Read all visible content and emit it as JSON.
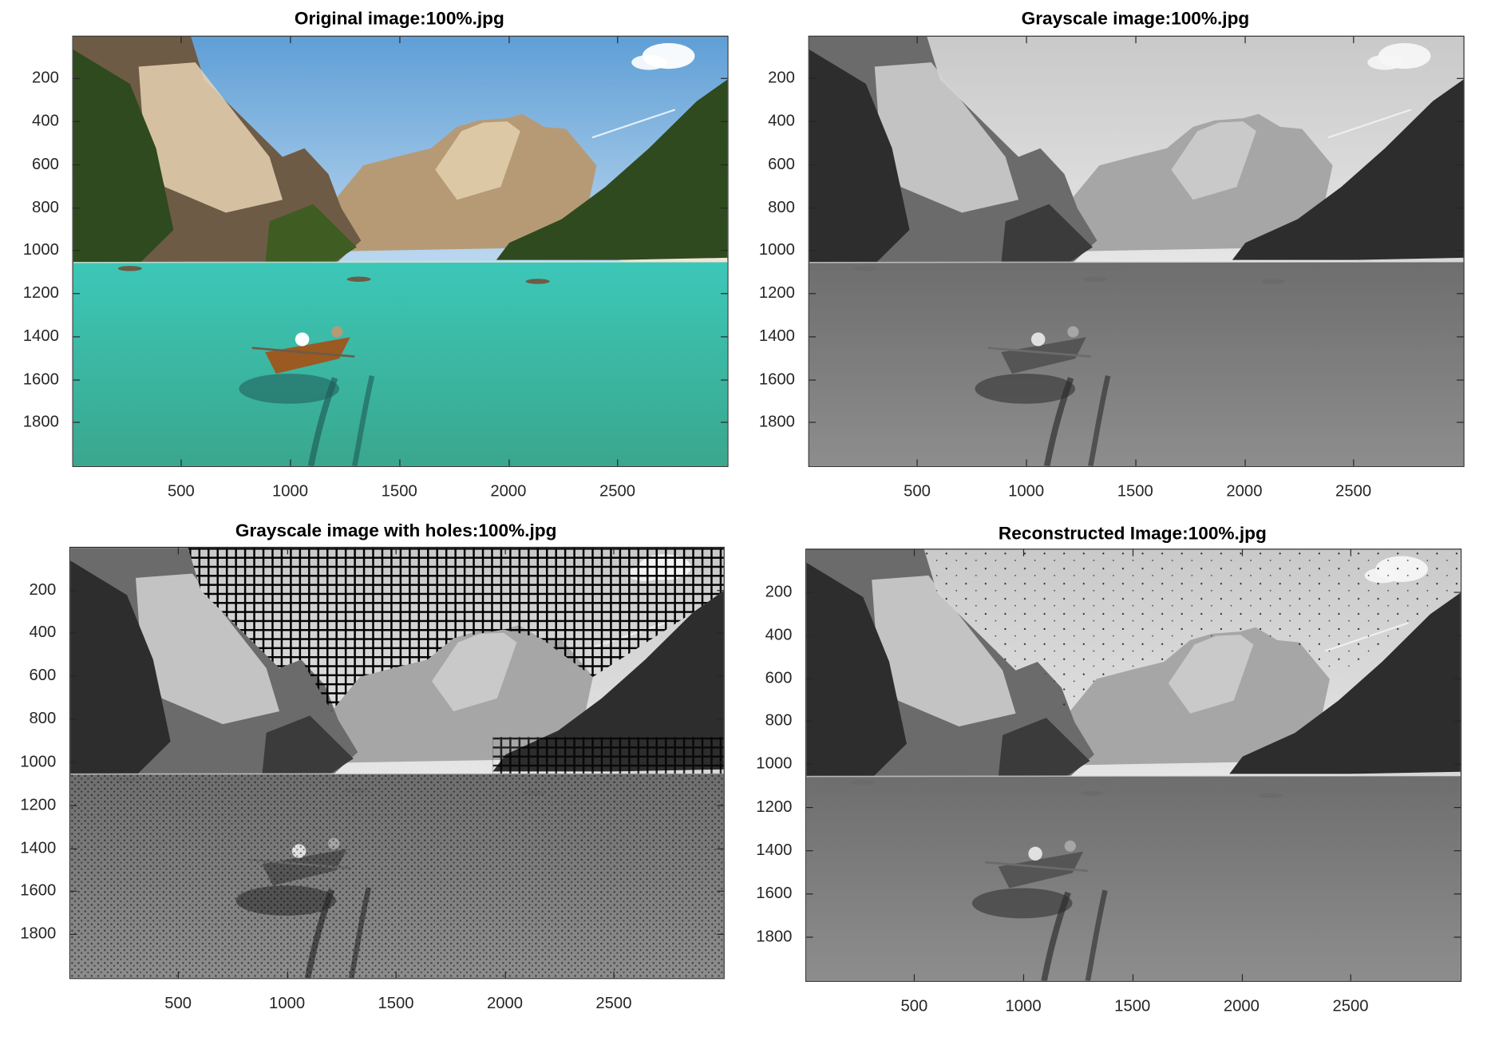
{
  "chart_data": [
    {
      "type": "image",
      "title": "Original image:100%.jpg",
      "variant": "color",
      "xlim": [
        1,
        3000
      ],
      "ylim": [
        1,
        2000
      ],
      "x_ticks": [
        500,
        1000,
        1500,
        2000,
        2500
      ],
      "y_ticks": [
        200,
        400,
        600,
        800,
        1000,
        1200,
        1400,
        1600,
        1800
      ],
      "y_reversed": true
    },
    {
      "type": "image",
      "title": "Grayscale image:100%.jpg",
      "variant": "gray",
      "xlim": [
        1,
        3000
      ],
      "ylim": [
        1,
        2000
      ],
      "x_ticks": [
        500,
        1000,
        1500,
        2000,
        2500
      ],
      "y_ticks": [
        200,
        400,
        600,
        800,
        1000,
        1200,
        1400,
        1600,
        1800
      ],
      "y_reversed": true
    },
    {
      "type": "image",
      "title": "Grayscale image with holes:100%.jpg",
      "variant": "holes",
      "xlim": [
        1,
        3000
      ],
      "ylim": [
        1,
        2000
      ],
      "x_ticks": [
        500,
        1000,
        1500,
        2000,
        2500
      ],
      "y_ticks": [
        200,
        400,
        600,
        800,
        1000,
        1200,
        1400,
        1600,
        1800
      ],
      "y_reversed": true
    },
    {
      "type": "image",
      "title": "Reconstructed Image:100%.jpg",
      "variant": "reconstructed",
      "xlim": [
        1,
        3000
      ],
      "ylim": [
        1,
        2000
      ],
      "x_ticks": [
        500,
        1000,
        1500,
        2000,
        2500
      ],
      "y_ticks": [
        200,
        400,
        600,
        800,
        1000,
        1200,
        1400,
        1600,
        1800
      ],
      "y_reversed": true
    }
  ],
  "colors": {
    "axis": "#262626",
    "sky": "#9ec6e8",
    "water": "#2fb7a8",
    "forest": "#2f4a1e",
    "rock": "#b9a58a"
  }
}
